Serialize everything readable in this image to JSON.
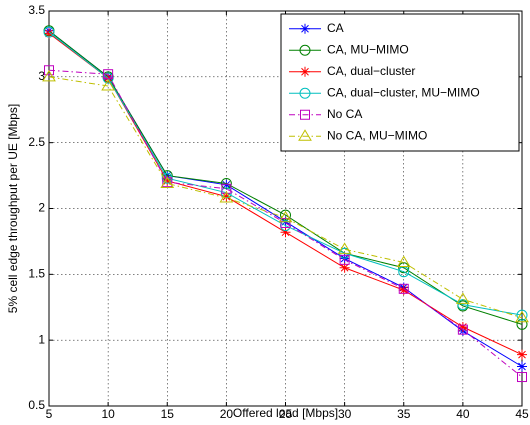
{
  "chart_data": {
    "type": "line",
    "title": "",
    "xlabel": "Offered load [Mbps]",
    "ylabel": "5% cell edge throughput per UE [Mbps]",
    "x": [
      5,
      10,
      15,
      20,
      25,
      30,
      35,
      40,
      45
    ],
    "xlim": [
      5,
      45
    ],
    "ylim": [
      0.5,
      3.5
    ],
    "xticks": [
      "5",
      "10",
      "15",
      "20",
      "25",
      "30",
      "35",
      "40",
      "45"
    ],
    "yticks": [
      "0.5",
      "1",
      "1.5",
      "2",
      "2.5",
      "3",
      "3.5"
    ],
    "grid": true,
    "legend_position": "top-right",
    "series": [
      {
        "name": "CA",
        "color": "#0000ff",
        "dash": "solid",
        "marker": "star",
        "values": [
          3.35,
          3.0,
          2.25,
          2.18,
          1.9,
          1.62,
          1.4,
          1.07,
          0.8
        ]
      },
      {
        "name": "CA, MU−MIMO",
        "color": "#008000",
        "dash": "solid",
        "marker": "circle",
        "values": [
          3.35,
          3.0,
          2.25,
          2.19,
          1.95,
          1.66,
          1.55,
          1.26,
          1.12
        ]
      },
      {
        "name": "CA, dual−cluster",
        "color": "#ff0000",
        "dash": "solid",
        "marker": "star",
        "values": [
          3.33,
          2.99,
          2.21,
          2.09,
          1.82,
          1.55,
          1.38,
          1.1,
          0.89
        ]
      },
      {
        "name": "CA, dual−cluster, MU−MIMO",
        "color": "#00bfbf",
        "dash": "solid",
        "marker": "circle",
        "values": [
          3.34,
          2.99,
          2.23,
          2.12,
          1.87,
          1.66,
          1.52,
          1.27,
          1.19
        ]
      },
      {
        "name": "No CA",
        "color": "#bf00bf",
        "dash": "dashdot",
        "marker": "square",
        "values": [
          3.05,
          3.02,
          2.2,
          2.15,
          1.89,
          1.61,
          1.39,
          1.08,
          0.72
        ]
      },
      {
        "name": "No CA, MU−MIMO",
        "color": "#bfbf00",
        "dash": "dashdot",
        "marker": "triangle",
        "values": [
          3.0,
          2.93,
          2.19,
          2.08,
          1.93,
          1.69,
          1.59,
          1.31,
          1.17
        ]
      }
    ]
  }
}
